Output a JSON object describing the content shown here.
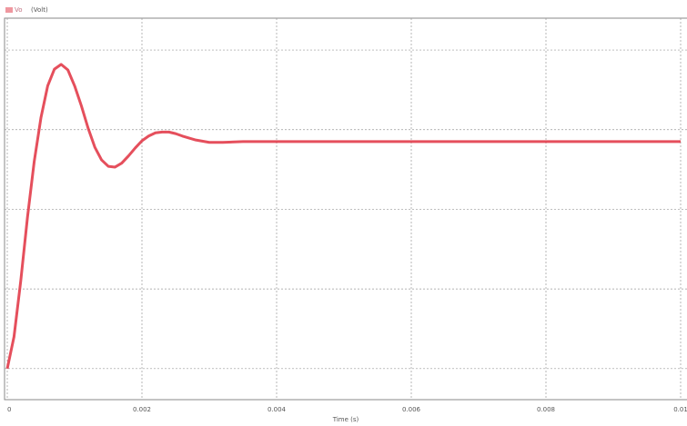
{
  "chart_data": {
    "type": "line",
    "legend_label": "Vo",
    "y_unit_label": "(Volt)",
    "x_label": "Time (s)",
    "x": [
      0,
      0.0001,
      0.0002,
      0.0003,
      0.0004,
      0.0005,
      0.0006,
      0.0007,
      0.0008,
      0.0009,
      0.001,
      0.0011,
      0.0012,
      0.0013,
      0.0014,
      0.0015,
      0.0016,
      0.0017,
      0.0018,
      0.0019,
      0.002,
      0.0021,
      0.0022,
      0.0023,
      0.0024,
      0.0025,
      0.0026,
      0.0028,
      0.003,
      0.0032,
      0.0035,
      0.004,
      0.005,
      0.006,
      0.007,
      0.008,
      0.009,
      0.01
    ],
    "series": [
      {
        "name": "Vo",
        "color": "#e03040",
        "values": [
          0,
          0.4,
          1.1,
          1.9,
          2.6,
          3.15,
          3.55,
          3.76,
          3.82,
          3.75,
          3.55,
          3.3,
          3.02,
          2.78,
          2.62,
          2.54,
          2.53,
          2.58,
          2.67,
          2.77,
          2.86,
          2.92,
          2.96,
          2.97,
          2.97,
          2.95,
          2.92,
          2.87,
          2.84,
          2.84,
          2.85,
          2.85,
          2.85,
          2.85,
          2.85,
          2.85,
          2.85,
          2.85
        ]
      }
    ],
    "xlim": [
      0,
      0.01
    ],
    "xticks": [
      0,
      0.002,
      0.004,
      0.006,
      0.008,
      0.01
    ],
    "ylim": [
      -0.39,
      4.4
    ],
    "ygrid": [
      0,
      1,
      2,
      3,
      4
    ],
    "grid": true
  }
}
